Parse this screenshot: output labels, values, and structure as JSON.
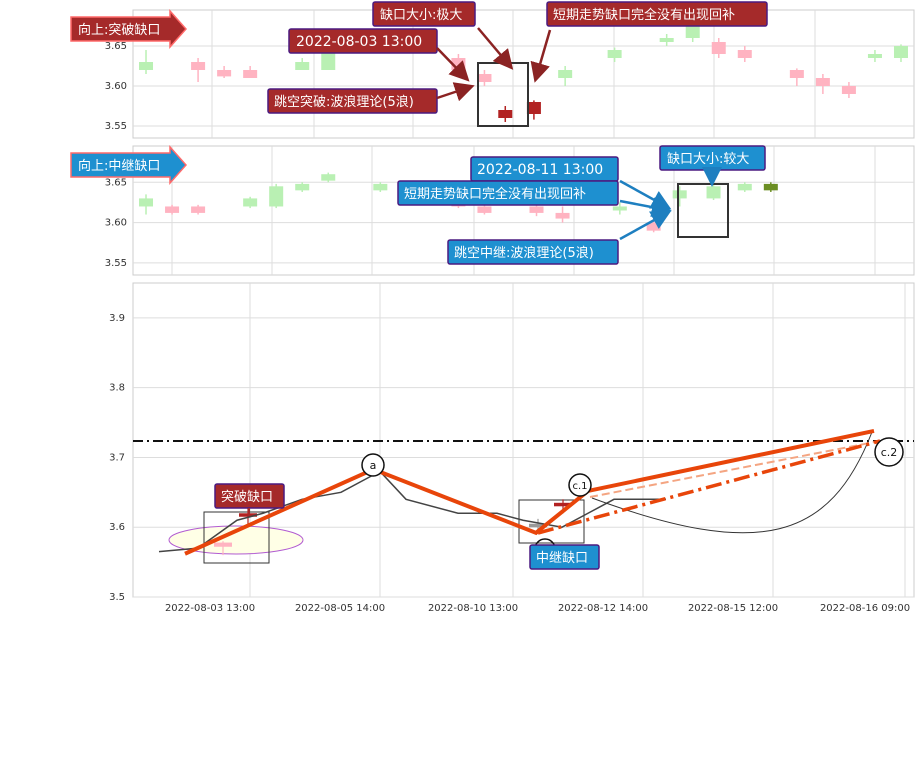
{
  "colors": {
    "up": "#ffb3c1",
    "down": "#b9f0b3",
    "gap_up": "#b22222",
    "gap_down_green": "#6b8e23",
    "red_label_bg": "#a52a2a",
    "blue_label_bg": "#1e90d0",
    "wave": "#e8450a"
  },
  "panel1": {
    "tag": "向上:突破缺口",
    "annotations": {
      "gap_size": "缺口大小:极大",
      "date": "2022-08-03 13:00",
      "no_fill": "短期走势缺口完全没有出现回补",
      "wave": "跳空突破:波浪理论(5浪)"
    }
  },
  "panel2": {
    "tag": "向上:中继缺口",
    "annotations": {
      "date": "2022-08-11 13:00",
      "gap_size": "缺口大小:较大",
      "no_fill": "短期走势缺口完全没有出现回补",
      "wave": "跳空中继:波浪理论(5浪)"
    }
  },
  "main": {
    "breakout_label": "突破缺口",
    "relay_label": "中继缺口",
    "points": {
      "a": "a",
      "c1": "c.1",
      "c2": "c.2"
    }
  },
  "chart_data": [
    {
      "type": "candlestick",
      "title": "",
      "ylim": [
        3.535,
        3.695
      ],
      "yticks": [
        3.55,
        3.6,
        3.65
      ],
      "candles": [
        {
          "x": 0.5,
          "o": 3.62,
          "c": 3.63,
          "h": 3.645,
          "l": 3.615
        },
        {
          "x": 2.5,
          "o": 3.63,
          "c": 3.62,
          "h": 3.635,
          "l": 3.605
        },
        {
          "x": 3.5,
          "o": 3.62,
          "c": 3.612,
          "h": 3.625,
          "l": 3.61
        },
        {
          "x": 4.5,
          "o": 3.62,
          "c": 3.61,
          "h": 3.625,
          "l": 3.61
        },
        {
          "x": 6.5,
          "o": 3.62,
          "c": 3.63,
          "h": 3.635,
          "l": 3.62
        },
        {
          "x": 7.5,
          "o": 3.62,
          "c": 3.645,
          "h": 3.65,
          "l": 3.62
        },
        {
          "x": 12.5,
          "o": 3.635,
          "c": 3.62,
          "h": 3.64,
          "l": 3.615
        },
        {
          "x": 13.5,
          "o": 3.615,
          "c": 3.605,
          "h": 3.62,
          "l": 3.6
        },
        {
          "x": 14.3,
          "o": 3.56,
          "c": 3.57,
          "h": 3.575,
          "l": 3.555
        },
        {
          "x": 15.4,
          "o": 3.565,
          "c": 3.58,
          "h": 3.582,
          "l": 3.558
        },
        {
          "x": 16.6,
          "o": 3.61,
          "c": 3.62,
          "h": 3.625,
          "l": 3.6
        },
        {
          "x": 18.5,
          "o": 3.635,
          "c": 3.645,
          "h": 3.648,
          "l": 3.63
        },
        {
          "x": 20.5,
          "o": 3.655,
          "c": 3.66,
          "h": 3.665,
          "l": 3.65
        },
        {
          "x": 21.5,
          "o": 3.66,
          "c": 3.675,
          "h": 3.68,
          "l": 3.655
        },
        {
          "x": 22.5,
          "o": 3.655,
          "c": 3.64,
          "h": 3.66,
          "l": 3.635
        },
        {
          "x": 23.5,
          "o": 3.645,
          "c": 3.635,
          "h": 3.65,
          "l": 3.63
        },
        {
          "x": 25.5,
          "o": 3.62,
          "c": 3.61,
          "h": 3.622,
          "l": 3.6
        },
        {
          "x": 26.5,
          "o": 3.61,
          "c": 3.6,
          "h": 3.615,
          "l": 3.59
        },
        {
          "x": 27.5,
          "o": 3.6,
          "c": 3.59,
          "h": 3.605,
          "l": 3.585
        },
        {
          "x": 28.5,
          "o": 3.635,
          "c": 3.64,
          "h": 3.645,
          "l": 3.63
        },
        {
          "x": 29.5,
          "o": 3.635,
          "c": 3.65,
          "h": 3.652,
          "l": 3.63
        }
      ]
    },
    {
      "type": "candlestick",
      "title": "",
      "ylim": [
        3.535,
        3.695
      ],
      "yticks": [
        3.55,
        3.6,
        3.65
      ],
      "candles": [
        {
          "x": 0.5,
          "o": 3.62,
          "c": 3.63,
          "h": 3.635,
          "l": 3.61
        },
        {
          "x": 1.5,
          "o": 3.62,
          "c": 3.612,
          "h": 3.622,
          "l": 3.61
        },
        {
          "x": 2.5,
          "o": 3.62,
          "c": 3.612,
          "h": 3.622,
          "l": 3.61
        },
        {
          "x": 4.5,
          "o": 3.62,
          "c": 3.63,
          "h": 3.632,
          "l": 3.618
        },
        {
          "x": 5.5,
          "o": 3.62,
          "c": 3.645,
          "h": 3.648,
          "l": 3.618
        },
        {
          "x": 6.5,
          "o": 3.64,
          "c": 3.648,
          "h": 3.65,
          "l": 3.638
        },
        {
          "x": 7.5,
          "o": 3.652,
          "c": 3.66,
          "h": 3.662,
          "l": 3.65
        },
        {
          "x": 9.5,
          "o": 3.64,
          "c": 3.648,
          "h": 3.65,
          "l": 3.638
        },
        {
          "x": 11.5,
          "o": 3.648,
          "c": 3.64,
          "h": 3.65,
          "l": 3.638
        },
        {
          "x": 12.5,
          "o": 3.63,
          "c": 3.62,
          "h": 3.632,
          "l": 3.618
        },
        {
          "x": 13.5,
          "o": 3.62,
          "c": 3.612,
          "h": 3.622,
          "l": 3.61
        },
        {
          "x": 14.5,
          "o": 3.57,
          "c": 3.575,
          "h": 3.578,
          "l": 3.56
        },
        {
          "x": 15.5,
          "o": 3.62,
          "c": 3.612,
          "h": 3.625,
          "l": 3.608
        },
        {
          "x": 16.5,
          "o": 3.612,
          "c": 3.605,
          "h": 3.62,
          "l": 3.6
        },
        {
          "x": 18.7,
          "o": 3.615,
          "c": 3.62,
          "h": 3.625,
          "l": 3.61
        },
        {
          "x": 20.0,
          "o": 3.6,
          "c": 3.59,
          "h": 3.61,
          "l": 3.588
        },
        {
          "x": 21.0,
          "o": 3.63,
          "c": 3.64,
          "h": 3.645,
          "l": 3.62
        },
        {
          "x": 22.3,
          "o": 3.63,
          "c": 3.645,
          "h": 3.65,
          "l": 3.628
        },
        {
          "x": 23.5,
          "o": 3.64,
          "c": 3.648,
          "h": 3.65,
          "l": 3.638
        },
        {
          "x": 24.5,
          "o": 3.64,
          "c": 3.648,
          "h": 3.65,
          "l": 3.638
        }
      ]
    },
    {
      "type": "line",
      "title": "",
      "ylim": [
        3.5,
        3.95
      ],
      "yticks": [
        3.5,
        3.6,
        3.7,
        3.8,
        3.9
      ],
      "xticks": [
        "2022-08-03 13:00",
        "2022-08-05 14:00",
        "2022-08-10 13:00",
        "2022-08-12 14:00",
        "2022-08-15 12:00",
        "2022-08-16 09:00"
      ],
      "resistance_level": 3.738,
      "price_series": [
        {
          "x": 0.3,
          "y": 3.565
        },
        {
          "x": 0.6,
          "y": 3.57
        },
        {
          "x": 0.9,
          "y": 3.61
        },
        {
          "x": 1.1,
          "y": 3.62
        },
        {
          "x": 1.4,
          "y": 3.64
        },
        {
          "x": 1.7,
          "y": 3.65
        },
        {
          "x": 2.0,
          "y": 3.68
        },
        {
          "x": 2.2,
          "y": 3.64
        },
        {
          "x": 2.6,
          "y": 3.62
        },
        {
          "x": 2.9,
          "y": 3.62
        },
        {
          "x": 3.1,
          "y": 3.61
        },
        {
          "x": 3.4,
          "y": 3.6
        },
        {
          "x": 3.6,
          "y": 3.62
        },
        {
          "x": 3.8,
          "y": 3.64
        },
        {
          "x": 4.2,
          "y": 3.64
        }
      ],
      "wave_path": [
        {
          "label": "",
          "x": 0.5,
          "y": 3.562
        },
        {
          "label": "a",
          "x": 1.95,
          "y": 3.683
        },
        {
          "label": "",
          "x": 3.2,
          "y": 3.592
        },
        {
          "label": "c.1",
          "x": 3.6,
          "y": 3.652
        },
        {
          "label": "c.2",
          "x": 5.8,
          "y": 3.738
        }
      ]
    }
  ]
}
